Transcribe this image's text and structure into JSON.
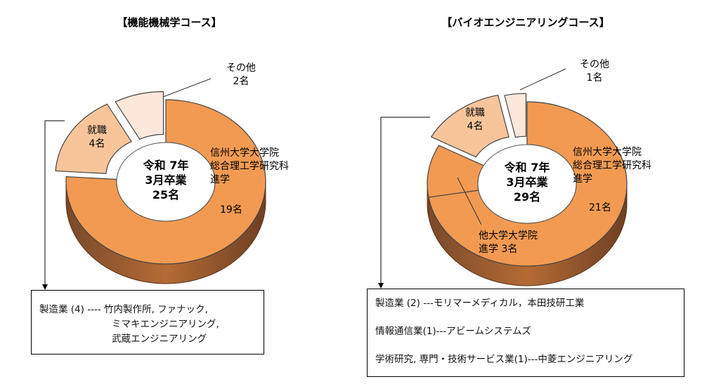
{
  "chart_data": [
    {
      "type": "pie",
      "title": "【機能機械学コース】",
      "center_label": [
        "令和 7年",
        "3月卒業",
        "25名"
      ],
      "slices": [
        {
          "label": [
            "信州大学大学院",
            "総合理工学研究科",
            "進学"
          ],
          "count_label": "19名",
          "value": 19,
          "color": "#f29a52"
        },
        {
          "label": [
            "就職",
            "4名"
          ],
          "value": 4,
          "color": "#f8c59b"
        },
        {
          "label": [
            "その他",
            "2名"
          ],
          "value": 2,
          "color": "#fde7da"
        }
      ]
    },
    {
      "type": "pie",
      "title": "【バイオエンジニアリングコース】",
      "center_label": [
        "令和 7年",
        "3月卒業",
        "29名"
      ],
      "slices": [
        {
          "label": [
            "信州大学大学院",
            "総合理工学研究科",
            "進学"
          ],
          "count_label": "21名",
          "value": 21,
          "color": "#f29a52"
        },
        {
          "label": [
            "他大学大学院",
            "進学 3名"
          ],
          "value": 3,
          "color": "#f29a52"
        },
        {
          "label": [
            "就職",
            "4名"
          ],
          "value": 4,
          "color": "#f8c59b"
        },
        {
          "label": [
            "その他",
            "1名"
          ],
          "value": 1,
          "color": "#fde7da"
        }
      ]
    }
  ],
  "notes": {
    "left": [
      "製造業 (4) ---- 竹内製作所, ファナック,",
      "ミマキエンジニアリング,",
      "武蔵エンジニアリング"
    ],
    "right": [
      "製造業 (2) ---モリマーメディカル，本田技研工業",
      "情報通信業(1)---アビームシステムズ",
      "学術研究, 専門・技術サービス業(1)---中菱エンジニアリング"
    ]
  }
}
